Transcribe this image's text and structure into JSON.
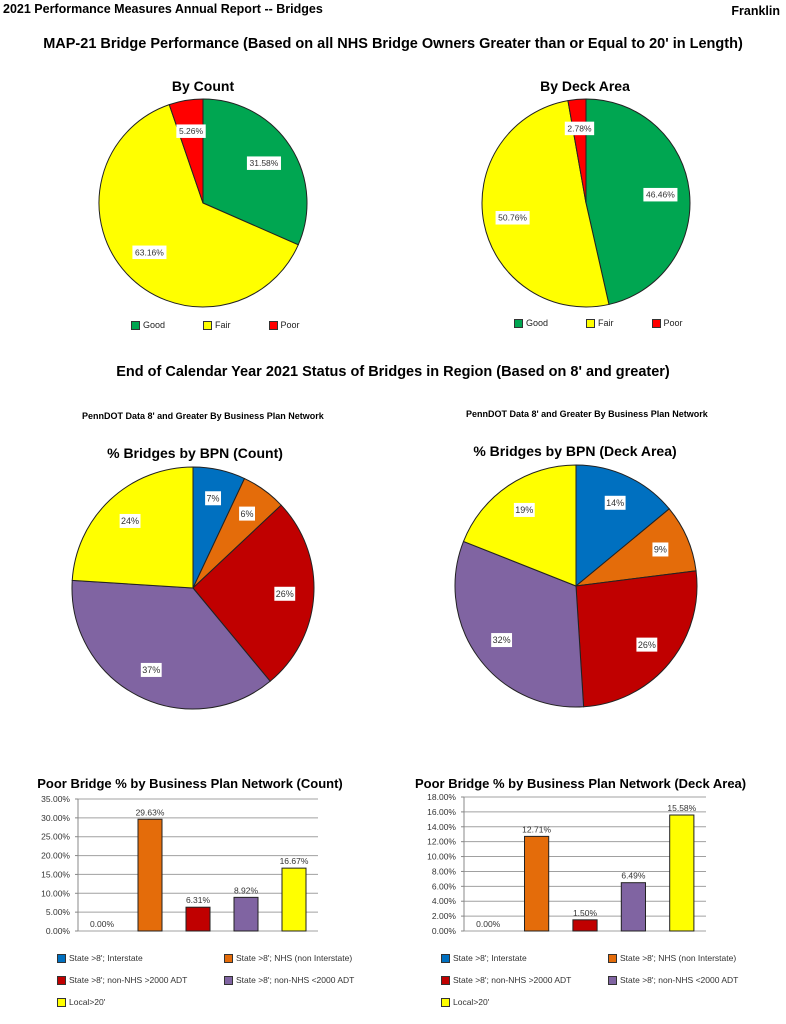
{
  "header": {
    "report_title": "2021 Performance Measures Annual Report -- Bridges",
    "region": "Franklin"
  },
  "section1": {
    "title": "MAP-21 Bridge Performance (Based on all NHS Bridge Owners Greater than or Equal to 20' in Length)"
  },
  "section2": {
    "title": "End of Calendar Year 2021 Status of Bridges in Region (Based on 8' and greater)",
    "left_subtitle": "PennDOT Data 8' and Greater By Business Plan Network",
    "right_subtitle": "PennDOT Data 8' and Greater By Business Plan Network"
  },
  "colors": {
    "good": "#00A651",
    "fair": "#FFFF00",
    "poor": "#FF0000",
    "interstate": "#0070C0",
    "nhs": "#E46C0A",
    "nonnhs_gt2000": "#C00000",
    "nonnhs_lt2000": "#8064A2",
    "local": "#FFFF00"
  },
  "chart_data": [
    {
      "id": "map21-count",
      "type": "pie",
      "title": "By Count",
      "labels": [
        "Good",
        "Fair",
        "Poor"
      ],
      "values": [
        31.58,
        63.16,
        5.26
      ],
      "data_labels": [
        "31.58%",
        "63.16%",
        "5.26%"
      ],
      "colors": [
        "#00A651",
        "#FFFF00",
        "#FF0000"
      ],
      "legend": "bottom"
    },
    {
      "id": "map21-deck",
      "type": "pie",
      "title": "By Deck Area",
      "labels": [
        "Good",
        "Fair",
        "Poor"
      ],
      "values": [
        46.46,
        50.76,
        2.78
      ],
      "data_labels": [
        "46.46%",
        "50.76%",
        "2.78%"
      ],
      "colors": [
        "#00A651",
        "#FFFF00",
        "#FF0000"
      ],
      "legend": "bottom"
    },
    {
      "id": "bpn-count",
      "type": "pie",
      "title": "% Bridges by BPN (Count)",
      "labels": [
        "State >8'; Interstate",
        "State >8'; NHS (non Interstate)",
        "State >8'; non-NHS >2000 ADT",
        "State >8'; non-NHS <2000 ADT",
        "Local>20'"
      ],
      "values": [
        7,
        6,
        26,
        37,
        24
      ],
      "data_labels": [
        "7%",
        "6%",
        "26%",
        "37%",
        "24%"
      ],
      "colors": [
        "#0070C0",
        "#E46C0A",
        "#C00000",
        "#8064A2",
        "#FFFF00"
      ]
    },
    {
      "id": "bpn-deck",
      "type": "pie",
      "title": "% Bridges by BPN (Deck Area)",
      "labels": [
        "State >8'; Interstate",
        "State >8'; NHS (non Interstate)",
        "State >8'; non-NHS >2000 ADT",
        "State >8'; non-NHS <2000 ADT",
        "Local>20'"
      ],
      "values": [
        14,
        9,
        26,
        32,
        19
      ],
      "data_labels": [
        "14%",
        "9%",
        "26%",
        "32%",
        "19%"
      ],
      "colors": [
        "#0070C0",
        "#E46C0A",
        "#C00000",
        "#8064A2",
        "#FFFF00"
      ]
    },
    {
      "id": "poor-count",
      "type": "bar",
      "title": "Poor  Bridge % by Business Plan Network (Count)",
      "categories": [
        "State >8'; Interstate",
        "State >8'; NHS (non Interstate)",
        "State >8'; non-NHS >2000 ADT",
        "State >8'; non-NHS <2000 ADT",
        "Local>20'"
      ],
      "values": [
        0.0,
        29.63,
        6.31,
        8.92,
        16.67
      ],
      "data_labels": [
        "0.00%",
        "29.63%",
        "6.31%",
        "8.92%",
        "16.67%"
      ],
      "colors": [
        "#0070C0",
        "#E46C0A",
        "#C00000",
        "#8064A2",
        "#FFFF00"
      ],
      "ylim": [
        0,
        35
      ],
      "yticks": [
        "0.00%",
        "5.00%",
        "10.00%",
        "15.00%",
        "20.00%",
        "25.00%",
        "30.00%",
        "35.00%"
      ],
      "grid": true,
      "legend": "bottom"
    },
    {
      "id": "poor-deck",
      "type": "bar",
      "title": "Poor  Bridge % by Business Plan Network (Deck Area)",
      "categories": [
        "State >8'; Interstate",
        "State >8'; NHS (non Interstate)",
        "State >8'; non-NHS >2000 ADT",
        "State >8'; non-NHS <2000 ADT",
        "Local>20'"
      ],
      "values": [
        0.0,
        12.71,
        1.5,
        6.49,
        15.58
      ],
      "data_labels": [
        "0.00%",
        "12.71%",
        "1.50%",
        "6.49%",
        "15.58%"
      ],
      "colors": [
        "#0070C0",
        "#E46C0A",
        "#C00000",
        "#8064A2",
        "#FFFF00"
      ],
      "ylim": [
        0,
        18
      ],
      "yticks": [
        "0.00%",
        "2.00%",
        "4.00%",
        "6.00%",
        "8.00%",
        "10.00%",
        "12.00%",
        "14.00%",
        "16.00%",
        "18.00%"
      ],
      "grid": true,
      "legend": "bottom"
    }
  ]
}
